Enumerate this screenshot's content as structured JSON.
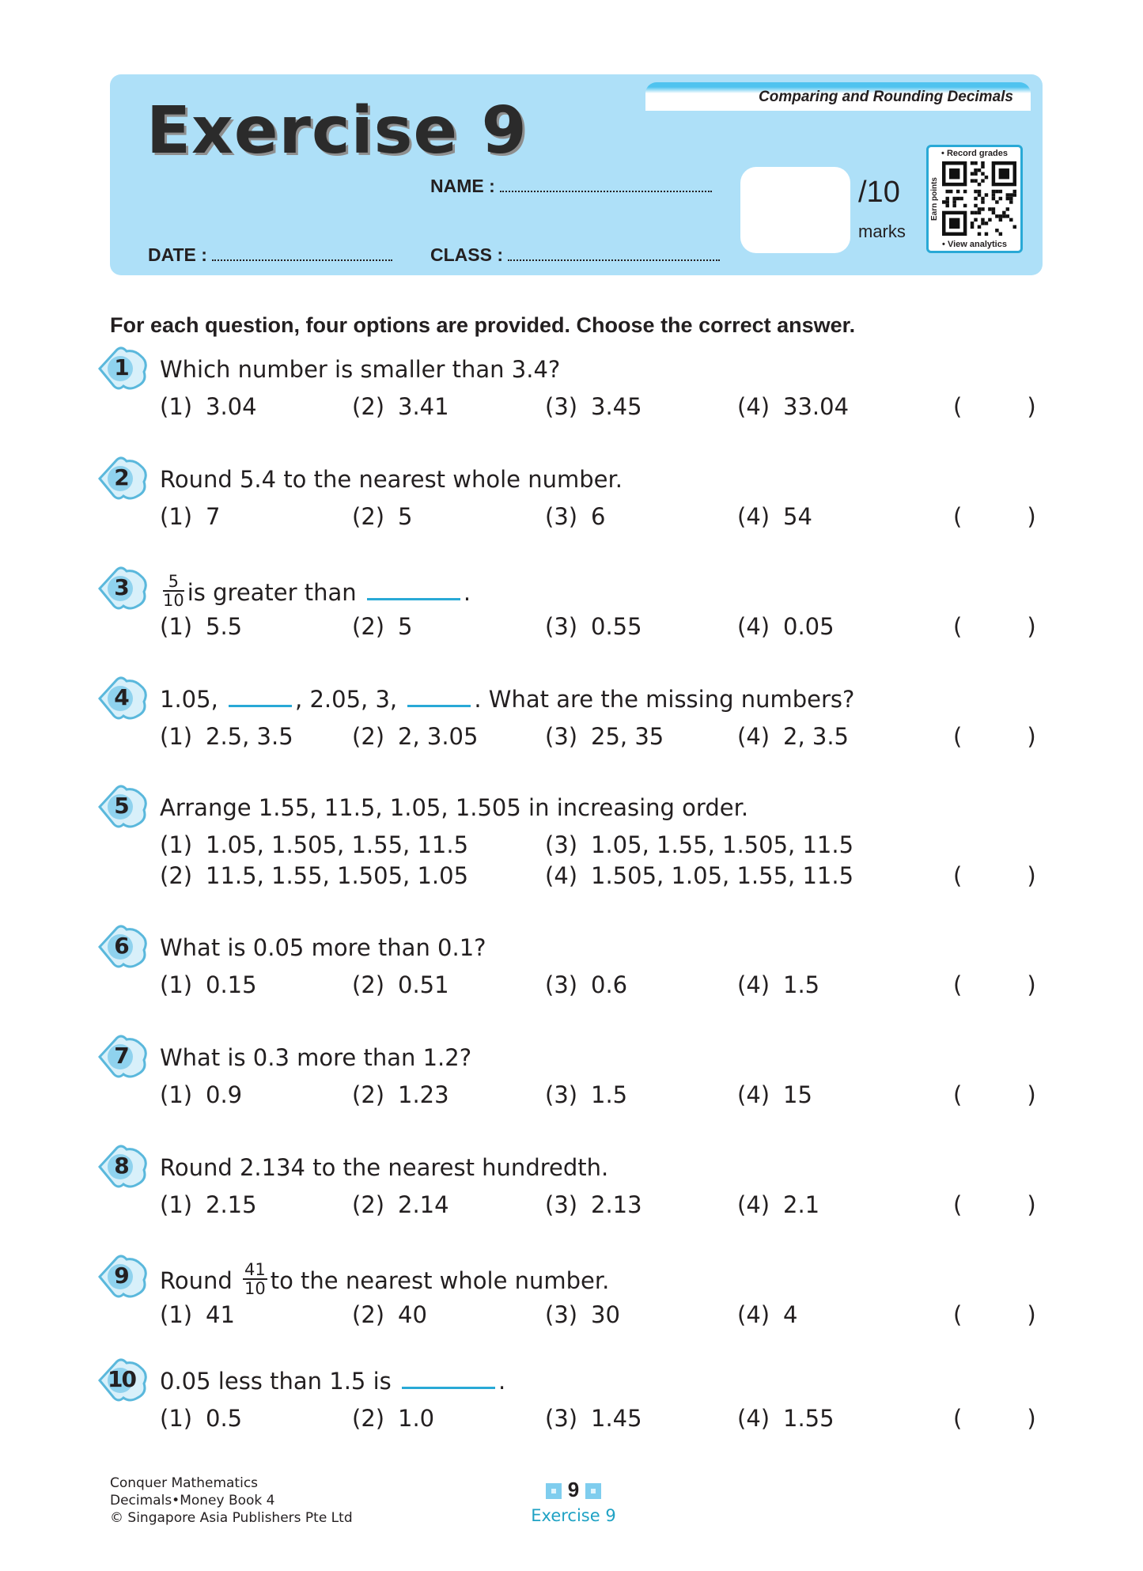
{
  "header": {
    "topic": "Comparing and Rounding Decimals",
    "title_word": "Exercise",
    "title_number": "9",
    "name_label": "NAME :",
    "class_label": "CLASS :",
    "date_label": "DATE :",
    "score_total": "/10",
    "score_unit": "marks",
    "qr": {
      "top": "• Record grades",
      "side": "Earn points",
      "bottom": "• View analytics"
    }
  },
  "instruction": "For each question, four options are provided. Choose the correct answer.",
  "answer_paren_open": "(",
  "answer_paren_close": ")",
  "questions": [
    {
      "number": "1",
      "parts": [
        {
          "text": "Which number is smaller than 3.4?"
        }
      ],
      "options": [
        "3.04",
        "3.41",
        "3.45",
        "33.04"
      ]
    },
    {
      "number": "2",
      "parts": [
        {
          "text": "Round 5.4 to the nearest whole number."
        }
      ],
      "options": [
        "7",
        "5",
        "6",
        "54"
      ]
    },
    {
      "number": "3",
      "parts": [
        {
          "frac": [
            "5",
            "10"
          ]
        },
        {
          "text": "is greater than "
        },
        {
          "blank": "long"
        },
        {
          "text": "."
        }
      ],
      "options": [
        "5.5",
        "5",
        "0.55",
        "0.05"
      ]
    },
    {
      "number": "4",
      "parts": [
        {
          "text": "1.05, "
        },
        {
          "blank": "short"
        },
        {
          "text": ", 2.05, 3, "
        },
        {
          "blank": "short"
        },
        {
          "text": ". What are the missing numbers?"
        }
      ],
      "options": [
        "2.5, 3.5",
        "2, 3.05",
        "25, 35",
        "2, 3.5"
      ]
    },
    {
      "number": "5",
      "parts": [
        {
          "text": "Arrange 1.55, 11.5, 1.05, 1.505 in increasing order."
        }
      ],
      "layout": "two-column",
      "options": [
        "1.05, 1.505, 1.55, 11.5",
        "11.5, 1.55, 1.505, 1.05",
        "1.05, 1.55, 1.505, 11.5",
        "1.505, 1.05, 1.55, 11.5"
      ]
    },
    {
      "number": "6",
      "parts": [
        {
          "text": "What is 0.05 more than 0.1?"
        }
      ],
      "options": [
        "0.15",
        "0.51",
        "0.6",
        "1.5"
      ]
    },
    {
      "number": "7",
      "parts": [
        {
          "text": "What is 0.3 more than 1.2?"
        }
      ],
      "options": [
        "0.9",
        "1.23",
        "1.5",
        "15"
      ]
    },
    {
      "number": "8",
      "parts": [
        {
          "text": "Round 2.134 to the nearest hundredth."
        }
      ],
      "options": [
        "2.15",
        "2.14",
        "2.13",
        "2.1"
      ]
    },
    {
      "number": "9",
      "parts": [
        {
          "text": "Round "
        },
        {
          "frac": [
            "41",
            "10"
          ]
        },
        {
          "text": "to the nearest whole number."
        }
      ],
      "options": [
        "41",
        "40",
        "30",
        "4"
      ]
    },
    {
      "number": "10",
      "parts": [
        {
          "text": "0.05 less than 1.5 is "
        },
        {
          "blank": "long"
        },
        {
          "text": "."
        }
      ],
      "options": [
        "0.5",
        "1.0",
        "1.45",
        "1.55"
      ]
    }
  ],
  "footer": {
    "line1": "Conquer Mathematics",
    "line2": "Decimals•Money Book 4",
    "line3": "© Singapore Asia Publishers Pte Ltd",
    "page_number": "9",
    "page_label": "Exercise 9"
  },
  "colors": {
    "header_bg": "#aee0f8",
    "accent": "#29a9d6",
    "footer_teal": "#1fa2c4"
  }
}
